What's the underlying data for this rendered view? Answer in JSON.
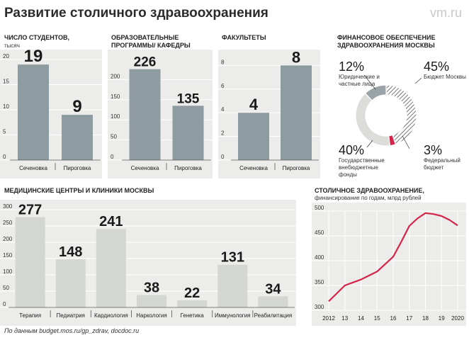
{
  "title": "Развитие столичного здравоохранения",
  "watermark": "vm.ru",
  "source": "По данным budget.mos.ru/gp_zdrav, docdoc.ru",
  "colors": {
    "bar_dark": "#8e9ba1",
    "bar_light": "#d4d6d3",
    "panel": "#ececea",
    "line": "#d4244a",
    "donut_light": "#dcdcda",
    "donut_gray": "#9aa3a8"
  },
  "chart_data": [
    {
      "type": "bar",
      "title": "Число студентов,",
      "subtitle": "тысяч",
      "categories": [
        "Сеченовка",
        "Пироговка"
      ],
      "values": [
        19,
        9
      ],
      "ylim": [
        0,
        20
      ],
      "yticks": [
        0,
        5,
        10,
        15,
        20
      ]
    },
    {
      "type": "bar",
      "title": "Образовательные программы/ кафедры",
      "categories": [
        "Сеченовка",
        "Пироговка"
      ],
      "values": [
        226,
        135
      ],
      "ylim": [
        0,
        250
      ],
      "yticks": [
        0,
        50,
        100,
        150,
        200
      ]
    },
    {
      "type": "bar",
      "title": "Факультеты",
      "categories": [
        "Сеченовка",
        "Пироговка"
      ],
      "values": [
        4,
        8
      ],
      "ylim": [
        0,
        8.5
      ],
      "yticks": [
        0,
        2,
        4,
        6,
        8
      ]
    },
    {
      "type": "pie",
      "title": "Финансовое обеспечение здравоохранения Москвы",
      "slices": [
        {
          "label": "Бюджет Москвы",
          "value": 45,
          "display": "45%",
          "style": "hatched"
        },
        {
          "label": "Федеральный бюджет",
          "value": 3,
          "display": "3%",
          "style": "red"
        },
        {
          "label": "Государственные внебюджетные фонды",
          "value": 40,
          "display": "40%",
          "style": "light"
        },
        {
          "label": "Юридические и частные лица",
          "value": 12,
          "display": "12%",
          "style": "gray"
        }
      ]
    },
    {
      "type": "bar",
      "title": "Медицинские центры и клиники Москвы",
      "categories": [
        "Терапия",
        "Педиатрия",
        "Кардиология",
        "Наркология",
        "Генетика",
        "Иммунология",
        "Реабилитация"
      ],
      "values": [
        277,
        148,
        241,
        38,
        22,
        131,
        34
      ],
      "ylim": [
        0,
        300
      ],
      "yticks": [
        0,
        50,
        100,
        150,
        200,
        250,
        300
      ]
    },
    {
      "type": "line",
      "title": "Столичное здравоохранение,",
      "subtitle": "финансирование по годам, млрд рублей",
      "x": [
        2012,
        2013,
        2014,
        2015,
        2016,
        2017,
        2018,
        2019,
        2020
      ],
      "xticklabels": [
        "2012",
        "13",
        "14",
        "15",
        "16",
        "17",
        "18",
        "19",
        "2020"
      ],
      "xpoints": [
        2012,
        2013,
        2013.5,
        2014,
        2014.5,
        2015,
        2015.5,
        2016,
        2016.5,
        2017,
        2017.5,
        2018,
        2018.5,
        2019,
        2019.5,
        2020
      ],
      "ypoints": [
        318,
        350,
        356,
        362,
        370,
        378,
        393,
        408,
        438,
        470,
        485,
        496,
        494,
        490,
        482,
        471
      ],
      "ylim": [
        300,
        500
      ],
      "yticks": [
        300,
        350,
        400,
        450,
        500
      ]
    }
  ]
}
